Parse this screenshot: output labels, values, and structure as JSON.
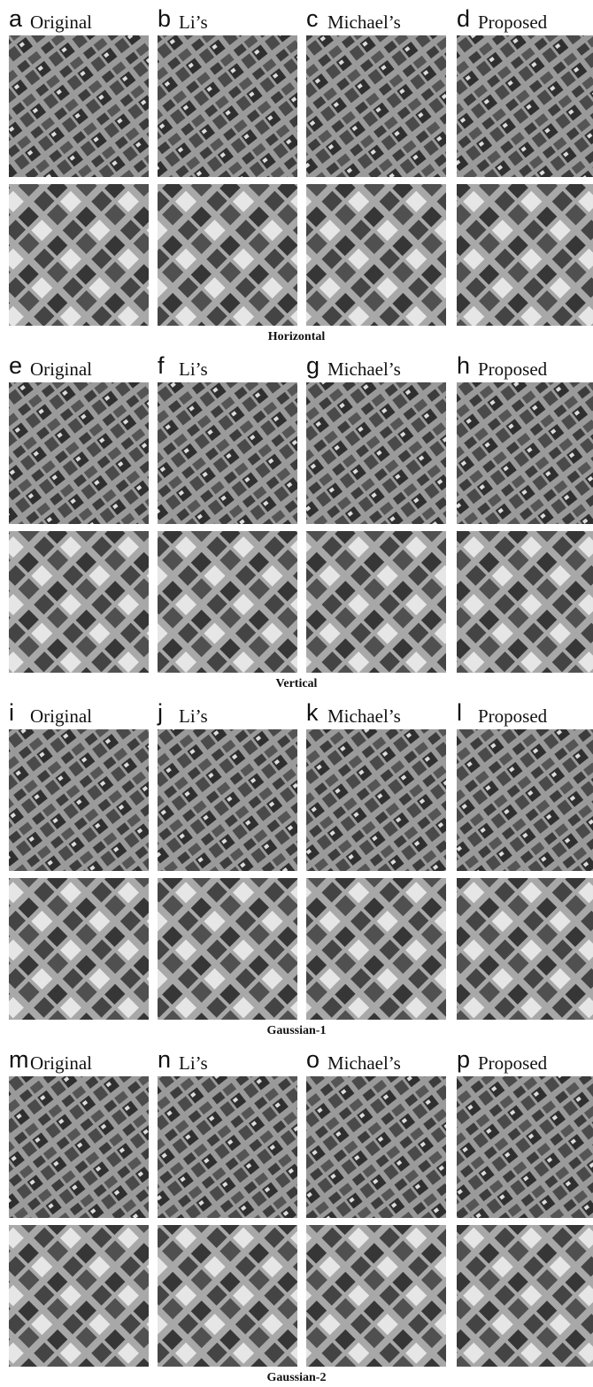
{
  "groups": [
    {
      "panels": [
        {
          "letter": "a",
          "method": "Original"
        },
        {
          "letter": "b",
          "method": "Li’s"
        },
        {
          "letter": "c",
          "method": "Michael’s"
        },
        {
          "letter": "d",
          "method": "Proposed"
        }
      ],
      "caption": "Horizontal"
    },
    {
      "panels": [
        {
          "letter": "e",
          "method": "Original"
        },
        {
          "letter": "f",
          "method": "Li’s"
        },
        {
          "letter": "g",
          "method": "Michael’s"
        },
        {
          "letter": "h",
          "method": "Proposed"
        }
      ],
      "caption": "Vertical"
    },
    {
      "panels": [
        {
          "letter": "i",
          "method": "Original"
        },
        {
          "letter": "j",
          "method": "Li’s"
        },
        {
          "letter": "k",
          "method": "Michael’s"
        },
        {
          "letter": "l",
          "method": "Proposed"
        }
      ],
      "caption": "Gaussian-1"
    },
    {
      "panels": [
        {
          "letter": "m",
          "method": "Original"
        },
        {
          "letter": "n",
          "method": "Li’s"
        },
        {
          "letter": "o",
          "method": "Michael’s"
        },
        {
          "letter": "p",
          "method": "Proposed"
        }
      ],
      "caption": "Gaussian-2"
    }
  ]
}
